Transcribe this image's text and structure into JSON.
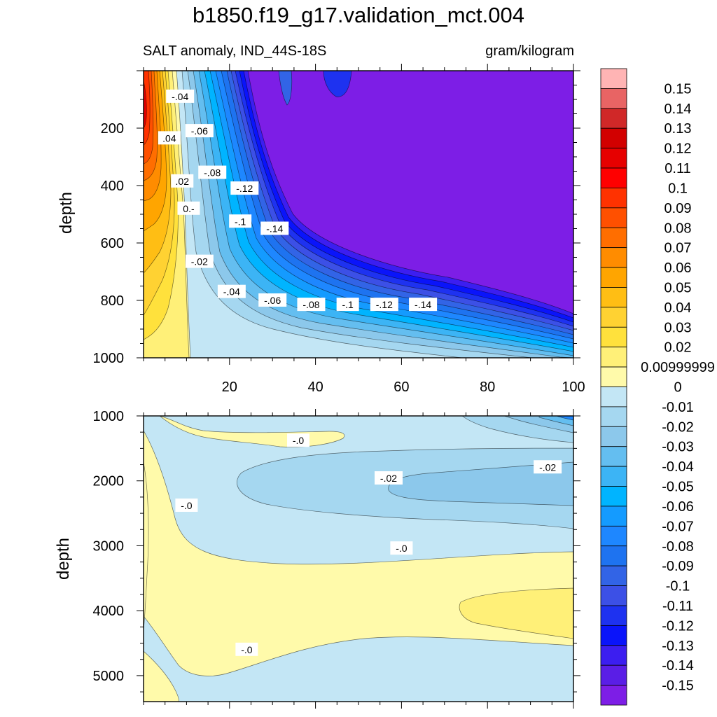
{
  "title": "b1850.f19_g17.validation_mct.004",
  "left_subtitle": "SALT anomaly, IND_44S-18S",
  "right_subtitle": "gram/kilogram",
  "chart_data": [
    {
      "type": "contour",
      "panel": "upper",
      "ylabel": "depth",
      "xlabel": "",
      "x_range": [
        0,
        100
      ],
      "y_range": [
        1000,
        0
      ],
      "x_ticks": [
        "20",
        "40",
        "60",
        "80",
        "100"
      ],
      "y_ticks": [
        "200",
        "400",
        "600",
        "800",
        "1000"
      ],
      "contour_labels": [
        {
          "text": "-.04",
          "x": 8.5,
          "y": 90
        },
        {
          "text": ".04",
          "x": 6,
          "y": 235
        },
        {
          "text": "-.06",
          "x": 13,
          "y": 210
        },
        {
          "text": "-.08",
          "x": 16,
          "y": 355
        },
        {
          "text": ".02",
          "x": 9,
          "y": 385
        },
        {
          "text": "-.12",
          "x": 23.5,
          "y": 410
        },
        {
          "text": "0.-",
          "x": 10.5,
          "y": 480
        },
        {
          "text": "-.1",
          "x": 22.5,
          "y": 525
        },
        {
          "text": "-.14",
          "x": 30.5,
          "y": 550
        },
        {
          "text": "-.02",
          "x": 13,
          "y": 665
        },
        {
          "text": "-.04",
          "x": 20.5,
          "y": 770
        },
        {
          "text": "-.06",
          "x": 30,
          "y": 800
        },
        {
          "text": "-.08",
          "x": 39,
          "y": 815
        },
        {
          "text": "-.1",
          "x": 47.5,
          "y": 815
        },
        {
          "text": "-.12",
          "x": 56,
          "y": 815
        },
        {
          "text": "-.14",
          "x": 65,
          "y": 815
        }
      ]
    },
    {
      "type": "contour",
      "panel": "lower",
      "ylabel": "depth",
      "xlabel": "",
      "x_range": [
        0,
        100
      ],
      "y_range": [
        5400,
        1000
      ],
      "y_ticks": [
        "1000",
        "2000",
        "3000",
        "4000",
        "5000"
      ],
      "contour_labels": [
        {
          "text": "-.0",
          "x": 36,
          "y": 1380
        },
        {
          "text": "-.02",
          "x": 57,
          "y": 1960
        },
        {
          "text": "-.02",
          "x": 94,
          "y": 1790
        },
        {
          "text": "-.0",
          "x": 10,
          "y": 2380
        },
        {
          "text": "-.0",
          "x": 60,
          "y": 3040
        },
        {
          "text": "-.0",
          "x": 24,
          "y": 4600
        }
      ]
    }
  ],
  "colorbar": {
    "labels": [
      "0.15",
      "0.14",
      "0.13",
      "0.12",
      "0.11",
      "0.1",
      "0.09",
      "0.08",
      "0.07",
      "0.06",
      "0.05",
      "0.04",
      "0.03",
      "0.02",
      "0.00999999",
      "0",
      "-0.01",
      "-0.02",
      "-0.03",
      "-0.04",
      "-0.05",
      "-0.06",
      "-0.07",
      "-0.08",
      "-0.09",
      "-0.1",
      "-0.11",
      "-0.12",
      "-0.13",
      "-0.14",
      "-0.15"
    ],
    "colors": [
      "#FFB4B4",
      "#E86464",
      "#D02828",
      "#D20000",
      "#E60000",
      "#FF0000",
      "#FF3200",
      "#FF5000",
      "#FF6E00",
      "#FF8C00",
      "#FFA500",
      "#FFBE14",
      "#FFD232",
      "#FFE13C",
      "#FFF078",
      "#FFFAAA",
      "#C3E6F5",
      "#A5D7F0",
      "#8CC8EB",
      "#64BEF0",
      "#3CB4F5",
      "#00B4FF",
      "#149BFF",
      "#1E87FF",
      "#1E73F0",
      "#3264E6",
      "#3C50E6",
      "#1E32F0",
      "#0A14FA",
      "#3C1EF0",
      "#5A1EE6",
      "#7D1EE6"
    ]
  }
}
